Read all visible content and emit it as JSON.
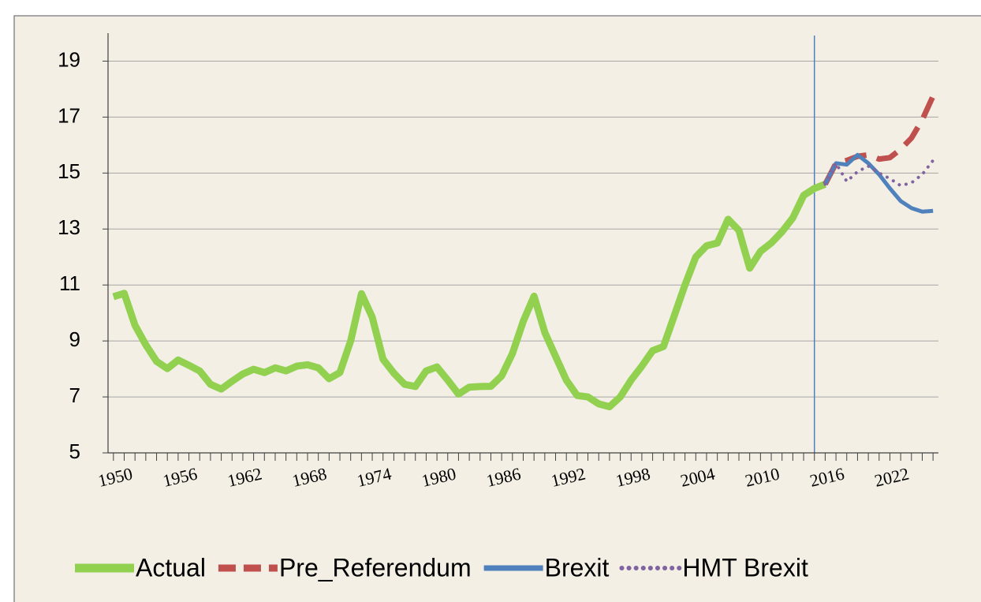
{
  "chart_data": {
    "type": "line",
    "x": [
      1950,
      1951,
      1952,
      1953,
      1954,
      1955,
      1956,
      1957,
      1958,
      1959,
      1960,
      1961,
      1962,
      1963,
      1964,
      1965,
      1966,
      1967,
      1968,
      1969,
      1970,
      1971,
      1972,
      1973,
      1974,
      1975,
      1976,
      1977,
      1978,
      1979,
      1980,
      1981,
      1982,
      1983,
      1984,
      1985,
      1986,
      1987,
      1988,
      1989,
      1990,
      1991,
      1992,
      1993,
      1994,
      1995,
      1996,
      1997,
      1998,
      1999,
      2000,
      2001,
      2002,
      2003,
      2004,
      2005,
      2006,
      2007,
      2008,
      2009,
      2010,
      2011,
      2012,
      2013,
      2014,
      2015,
      2016,
      2017,
      2018,
      2019,
      2020,
      2021,
      2022,
      2023,
      2024,
      2025,
      2026
    ],
    "xlim": [
      1949.5,
      2026.5
    ],
    "xticks": [
      1950,
      1956,
      1962,
      1968,
      1974,
      1980,
      1986,
      1992,
      1998,
      2004,
      2010,
      2016,
      2022
    ],
    "ylim": [
      5,
      20
    ],
    "yticks": [
      5,
      7,
      9,
      11,
      13,
      15,
      17,
      19
    ],
    "grid": true,
    "vline": 2015,
    "vline_color": "#4f81bd",
    "series": [
      {
        "name": "Actual",
        "color": "#92d050",
        "style": "solid",
        "width": 9,
        "values": [
          10.58,
          10.7,
          9.56,
          8.86,
          8.27,
          8.01,
          8.32,
          8.13,
          7.93,
          7.45,
          7.28,
          7.56,
          7.82,
          7.99,
          7.87,
          8.04,
          7.93,
          8.1,
          8.15,
          8.04,
          7.65,
          7.87,
          9.0,
          10.69,
          9.85,
          8.35,
          7.85,
          7.45,
          7.37,
          7.93,
          8.07,
          7.6,
          7.1,
          7.35,
          7.37,
          7.38,
          7.75,
          8.55,
          9.7,
          10.6,
          9.3,
          8.45,
          7.6,
          7.05,
          7.0,
          6.75,
          6.65,
          7.0,
          7.6,
          8.1,
          8.65,
          8.8,
          9.9,
          11.0,
          12.0,
          12.4,
          12.5,
          13.35,
          12.95,
          11.6,
          12.2,
          12.5,
          12.9,
          13.4,
          14.2,
          14.45,
          14.6,
          null,
          null,
          null,
          null,
          null,
          null,
          null,
          null,
          null,
          null
        ]
      },
      {
        "name": "Pre_Referendum",
        "color": "#c0504d",
        "style": "dashed",
        "width": 7,
        "values": [
          null,
          null,
          null,
          null,
          null,
          null,
          null,
          null,
          null,
          null,
          null,
          null,
          null,
          null,
          null,
          null,
          null,
          null,
          null,
          null,
          null,
          null,
          null,
          null,
          null,
          null,
          null,
          null,
          null,
          null,
          null,
          null,
          null,
          null,
          null,
          null,
          null,
          null,
          null,
          null,
          null,
          null,
          null,
          null,
          null,
          null,
          null,
          null,
          null,
          null,
          null,
          null,
          null,
          null,
          null,
          null,
          null,
          null,
          null,
          null,
          null,
          null,
          null,
          null,
          null,
          null,
          14.6,
          15.35,
          15.45,
          15.6,
          15.65,
          15.5,
          15.55,
          15.85,
          16.25,
          16.9,
          17.75
        ]
      },
      {
        "name": "Brexit",
        "color": "#4f81bd",
        "style": "solid",
        "width": 5,
        "values": [
          null,
          null,
          null,
          null,
          null,
          null,
          null,
          null,
          null,
          null,
          null,
          null,
          null,
          null,
          null,
          null,
          null,
          null,
          null,
          null,
          null,
          null,
          null,
          null,
          null,
          null,
          null,
          null,
          null,
          null,
          null,
          null,
          null,
          null,
          null,
          null,
          null,
          null,
          null,
          null,
          null,
          null,
          null,
          null,
          null,
          null,
          null,
          null,
          null,
          null,
          null,
          null,
          null,
          null,
          null,
          null,
          null,
          null,
          null,
          null,
          null,
          null,
          null,
          null,
          null,
          null,
          14.6,
          15.35,
          15.3,
          15.65,
          15.35,
          14.95,
          14.45,
          14.0,
          13.75,
          13.62,
          13.65
        ]
      },
      {
        "name": "HMT Brexit",
        "color": "#8064a2",
        "style": "dotted",
        "width": 4,
        "values": [
          null,
          null,
          null,
          null,
          null,
          null,
          null,
          null,
          null,
          null,
          null,
          null,
          null,
          null,
          null,
          null,
          null,
          null,
          null,
          null,
          null,
          null,
          null,
          null,
          null,
          null,
          null,
          null,
          null,
          null,
          null,
          null,
          null,
          null,
          null,
          null,
          null,
          null,
          null,
          null,
          null,
          null,
          null,
          null,
          null,
          null,
          null,
          null,
          null,
          null,
          null,
          null,
          null,
          null,
          null,
          null,
          null,
          null,
          null,
          null,
          null,
          null,
          null,
          null,
          null,
          null,
          14.6,
          15.35,
          14.7,
          15.05,
          15.25,
          15.0,
          14.8,
          14.55,
          14.65,
          14.95,
          15.45
        ]
      }
    ]
  }
}
